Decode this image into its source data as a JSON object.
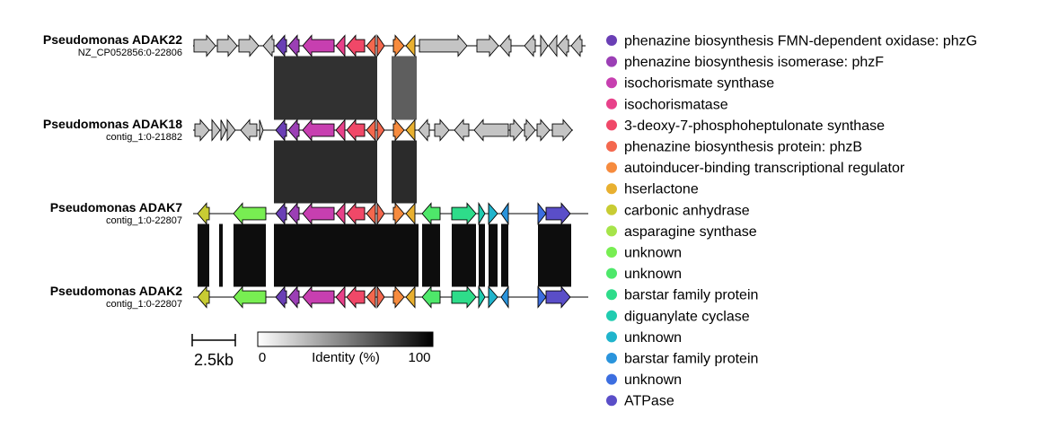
{
  "tracks": [
    {
      "name": "Pseudomonas ADAK22",
      "sub": "NZ_CP052856:0-22806"
    },
    {
      "name": "Pseudomonas ADAK18",
      "sub": "contig_1:0-21882"
    },
    {
      "name": "Pseudomonas ADAK7",
      "sub": "contig_1:0-22807"
    },
    {
      "name": "Pseudomonas ADAK2",
      "sub": "contig_1:0-22807"
    }
  ],
  "legend": [
    {
      "label": "phenazine biosynthesis FMN-dependent oxidase: phzG",
      "color": "#6a3fb5"
    },
    {
      "label": "phenazine biosynthesis isomerase: phzF",
      "color": "#9b3fb5"
    },
    {
      "label": "isochorismate synthase",
      "color": "#c73fb0"
    },
    {
      "label": "isochorismatase",
      "color": "#e8418a"
    },
    {
      "label": "3-deoxy-7-phosphoheptulonate synthase",
      "color": "#f04868"
    },
    {
      "label": "phenazine biosynthesis protein: phzB",
      "color": "#f4684e"
    },
    {
      "label": "autoinducer-binding transcriptional regulator",
      "color": "#f68b3e"
    },
    {
      "label": "hserlactone",
      "color": "#e8b030"
    },
    {
      "label": "carbonic anhydrase",
      "color": "#c8cc33"
    },
    {
      "label": "asparagine synthase",
      "color": "#a6e44a"
    },
    {
      "label": "unknown",
      "color": "#78ee52"
    },
    {
      "label": "unknown",
      "color": "#4ee86a"
    },
    {
      "label": "barstar family protein",
      "color": "#2edc8a"
    },
    {
      "label": "diguanylate cyclase",
      "color": "#20ccb0"
    },
    {
      "label": "unknown",
      "color": "#20b4cc"
    },
    {
      "label": "barstar family protein",
      "color": "#2a94dc"
    },
    {
      "label": "unknown",
      "color": "#3c6ee0"
    },
    {
      "label": "ATPase",
      "color": "#5a4ec8"
    }
  ],
  "scale_bar": {
    "label": "2.5kb"
  },
  "colorbar": {
    "min_label": "0",
    "title": "Identity (%)",
    "max_label": "100",
    "min": 0,
    "max": 100
  }
}
